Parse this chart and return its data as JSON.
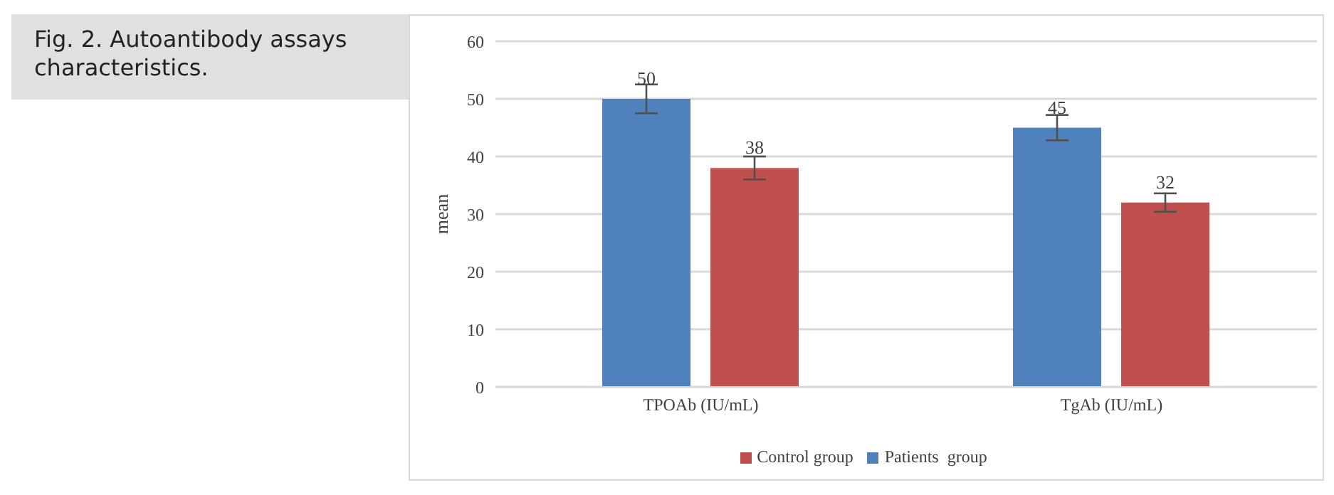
{
  "chart_data": {
    "type": "bar",
    "title": "Fig. 2. Autoantibody assays characteristics.",
    "ylabel": "mean",
    "categories": [
      "TPOAb (IU/mL)",
      "TgAb (IU/mL)"
    ],
    "series": [
      {
        "name": "Patients  group",
        "color": "#4f81bd",
        "values": [
          50,
          45
        ],
        "errors": [
          2.5,
          2.2
        ]
      },
      {
        "name": "Control group",
        "color": "#c0504d",
        "values": [
          38,
          32
        ],
        "errors": [
          2,
          1.6
        ]
      }
    ],
    "ylim": [
      0,
      60
    ],
    "yticks": [
      0,
      10,
      20,
      30,
      40,
      50,
      60
    ],
    "grid": "y",
    "legend": "bottom",
    "data_labels": true
  }
}
